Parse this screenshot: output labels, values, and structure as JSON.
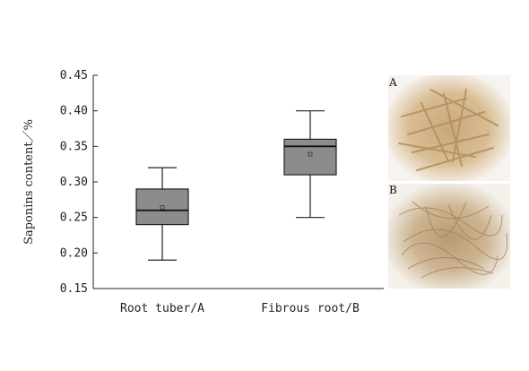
{
  "chart_data": {
    "type": "box",
    "ylabel": "Saponins content／%",
    "ylim": [
      0.15,
      0.45
    ],
    "yticks": [
      "0.45",
      "0.40",
      "0.35",
      "0.30",
      "0.25",
      "0.20",
      "0.15"
    ],
    "categories": [
      "Root tuber/A",
      "Fibrous root/B"
    ],
    "boxes": [
      {
        "whisker_low": 0.19,
        "q1": 0.24,
        "median": 0.26,
        "q3": 0.29,
        "whisker_high": 0.32,
        "mean": 0.264
      },
      {
        "whisker_low": 0.25,
        "q1": 0.31,
        "median": 0.35,
        "q3": 0.36,
        "whisker_high": 0.4,
        "mean": 0.339
      }
    ],
    "box_color": "#8c8c8c",
    "grid": false,
    "legend": "none"
  },
  "photos": {
    "A": {
      "label": "A",
      "subject": "root-tuber-photo"
    },
    "B": {
      "label": "B",
      "subject": "fibrous-root-photo"
    }
  }
}
